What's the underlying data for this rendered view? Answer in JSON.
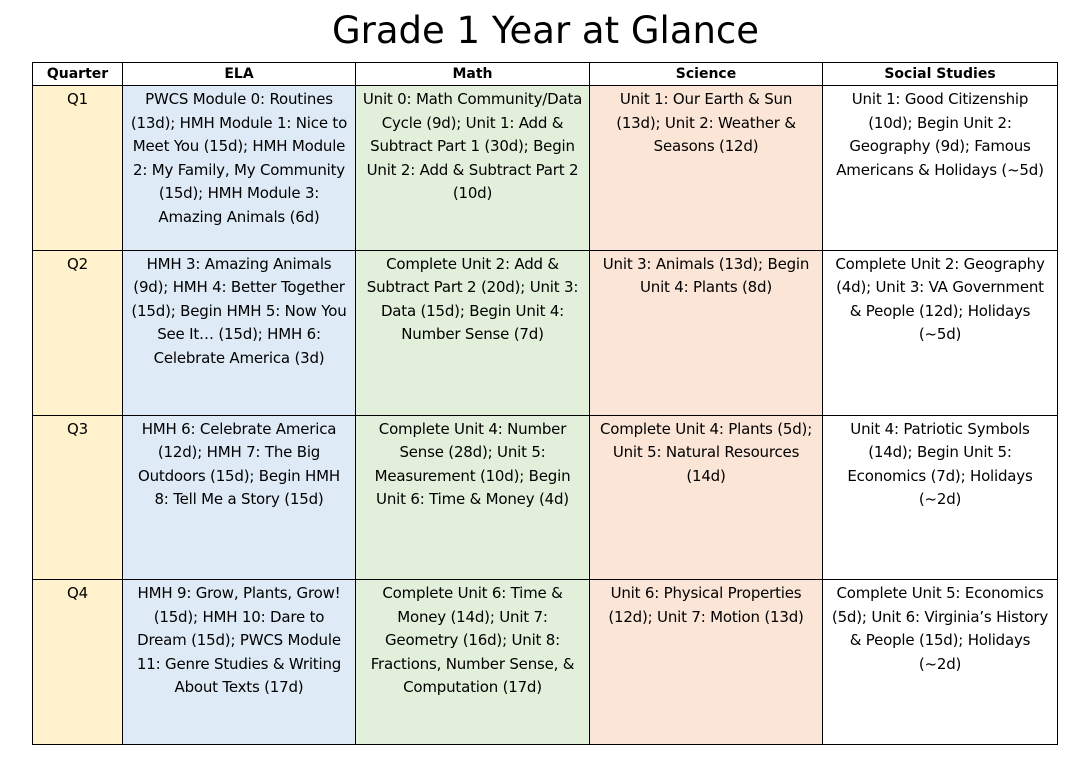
{
  "title": "Grade 1 Year at Glance",
  "colors": {
    "quarter_bg": "#fff2cc",
    "ela_bg": "#deebf7",
    "math_bg": "#e2efda",
    "science_bg": "#fbe5d6",
    "social_studies_bg": "#ffffff"
  },
  "table": {
    "headers": [
      "Quarter",
      "ELA",
      "Math",
      "Science",
      "Social Studies"
    ],
    "rows": [
      {
        "quarter": "Q1",
        "ela": "PWCS Module 0: Routines (13d); HMH Module 1: Nice to Meet You (15d); HMH Module 2: My Family, My Community (15d); HMH Module 3: Amazing Animals (6d)",
        "math": "Unit 0: Math Community/Data Cycle (9d); Unit 1: Add & Subtract Part 1 (30d); Begin Unit 2: Add & Subtract Part 2 (10d)",
        "science": "Unit 1: Our Earth & Sun (13d); Unit 2: Weather & Seasons (12d)",
        "social_studies": "Unit 1: Good Citizenship (10d); Begin Unit 2: Geography (9d); Famous Americans & Holidays (~5d)"
      },
      {
        "quarter": "Q2",
        "ela": "HMH 3: Amazing Animals (9d); HMH 4: Better Together (15d); Begin HMH 5: Now You See It… (15d); HMH 6: Celebrate America (3d)",
        "math": "Complete Unit 2: Add & Subtract Part 2 (20d); Unit 3: Data (15d); Begin Unit 4: Number Sense (7d)",
        "science": "Unit 3: Animals (13d); Begin Unit 4: Plants (8d)",
        "social_studies": "Complete Unit 2: Geography (4d); Unit 3: VA Government & People (12d); Holidays (~5d)"
      },
      {
        "quarter": "Q3",
        "ela": "HMH 6: Celebrate America (12d); HMH 7: The Big Outdoors (15d); Begin HMH 8: Tell Me a Story (15d)",
        "math": "Complete Unit 4: Number Sense (28d); Unit 5: Measurement (10d); Begin Unit 6: Time & Money (4d)",
        "science": "Complete Unit 4: Plants (5d); Unit 5: Natural Resources (14d)",
        "social_studies": "Unit 4: Patriotic Symbols (14d); Begin Unit 5: Economics (7d); Holidays (~2d)"
      },
      {
        "quarter": "Q4",
        "ela": "HMH 9: Grow, Plants, Grow! (15d); HMH 10: Dare to Dream (15d); PWCS Module 11: Genre Studies & Writing About Texts (17d)",
        "math": "Complete Unit 6: Time & Money (14d); Unit 7: Geometry (16d); Unit 8: Fractions, Number Sense, & Computation (17d)",
        "science": "Unit 6: Physical Properties (12d); Unit 7: Motion (13d)",
        "social_studies": "Complete Unit 5: Economics (5d); Unit 6: Virginia’s History & People (15d); Holidays (~2d)"
      }
    ]
  }
}
